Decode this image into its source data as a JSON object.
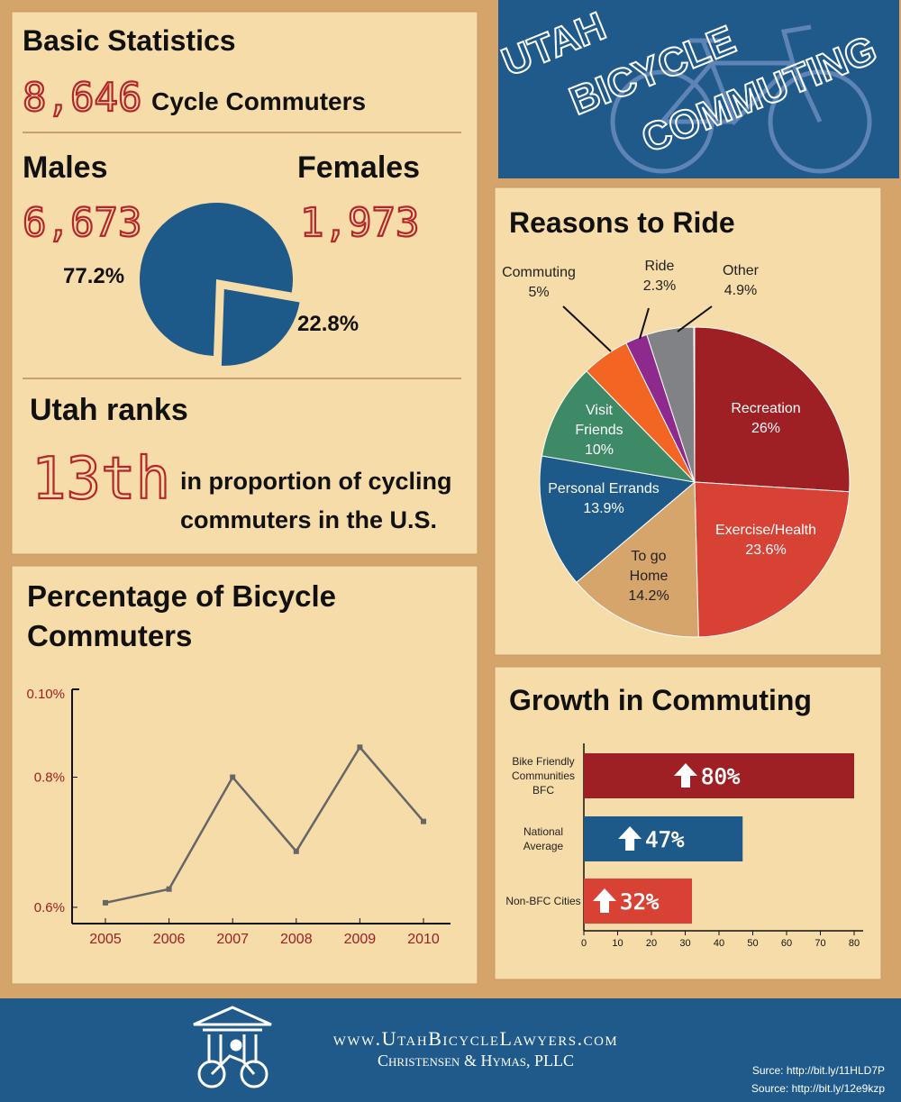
{
  "title_panel": {
    "lines": [
      "UTAH",
      "BICYCLE",
      "COMMUTING"
    ]
  },
  "basic_stats": {
    "title": "Basic Statistics",
    "total": "8,646",
    "total_label": "Cycle Commuters",
    "rank_title": "Utah ranks",
    "rank": "13th",
    "rank_text": [
      "in proportion of cycling",
      "commuters in the U.S."
    ]
  },
  "chart_data": [
    {
      "type": "pie",
      "categories": [
        "Males",
        "Females"
      ],
      "counts": [
        "6,673",
        "1,973"
      ],
      "values": [
        77.2,
        22.8
      ],
      "value_labels": [
        "77.2%",
        "22.8%"
      ],
      "color": "#1d5a8a"
    },
    {
      "type": "pie",
      "title": "Reasons to Ride",
      "categories": [
        "Recreation",
        "Exercise/Health",
        "To go Home",
        "Personal Errands",
        "Visit Friends",
        "Commuting",
        "Ride",
        "Other"
      ],
      "values": [
        26,
        23.6,
        14.2,
        13.9,
        10,
        5,
        2.3,
        4.9
      ],
      "value_labels": [
        "26%",
        "23.6%",
        "14.2%",
        "13.9%",
        "10%",
        "5%",
        "2.3%",
        "4.9%"
      ],
      "colors": [
        "#9e1f24",
        "#d84235",
        "#d6a56c",
        "#1d5a8a",
        "#3e8a66",
        "#f26522",
        "#8e2a8e",
        "#808285"
      ]
    },
    {
      "type": "line",
      "title": "Percentage of Bicycle Commuters",
      "categories": [
        "2005",
        "2006",
        "2007",
        "2008",
        "2009",
        "2010"
      ],
      "values": [
        0.607,
        0.628,
        0.8,
        0.686,
        0.846,
        0.732
      ],
      "ylim": [
        0.575,
        0.935
      ],
      "yticks": [
        {
          "value": 0.6,
          "label": "0.6%"
        },
        {
          "value": 0.8,
          "label": "0.8%"
        }
      ],
      "y_top_label": "0.10%",
      "color": "#666666"
    },
    {
      "type": "bar",
      "orientation": "horizontal",
      "title": "Growth in Commuting",
      "categories": [
        "Bike Friendly Communities BFC",
        "National Average",
        "Non-BFC Cities"
      ],
      "values": [
        80,
        47,
        32
      ],
      "value_labels": [
        "80%",
        "47%",
        "32%"
      ],
      "colors": [
        "#9e1f24",
        "#1d5a8a",
        "#d84235"
      ],
      "xlim": [
        0,
        80
      ],
      "xticks": [
        0,
        10,
        20,
        30,
        40,
        50,
        60,
        70,
        80
      ]
    }
  ],
  "footer": {
    "website": "www.UtahBicycleLawyers.com",
    "company": "Christensen & Hymas, PLLC",
    "sources": [
      "Surce: http://bit.ly/11HLD7P",
      "Source: http://bit.ly/12e9kzp"
    ]
  }
}
